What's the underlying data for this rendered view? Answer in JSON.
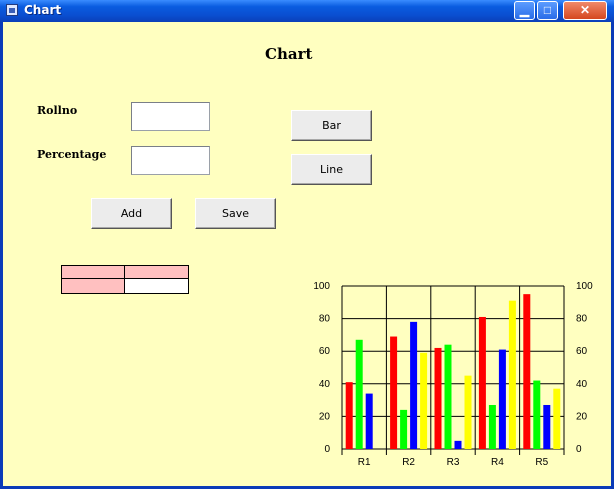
{
  "window": {
    "title": "Chart",
    "controls": {
      "minimize": "▁",
      "maximize": "□",
      "close": "✕"
    }
  },
  "form": {
    "heading": "Chart",
    "rollno_label": "Rollno",
    "percentage_label": "Percentage",
    "rollno_value": "",
    "percentage_value": "",
    "bar_button": "Bar",
    "line_button": "Line",
    "add_button": "Add",
    "save_button": "Save"
  },
  "grid": {
    "rows": [
      [
        "",
        ""
      ],
      [
        "",
        ""
      ]
    ],
    "fixed_color": "#ffc0c0"
  },
  "chart_data": {
    "type": "bar",
    "categories": [
      "R1",
      "R2",
      "R3",
      "R4",
      "R5"
    ],
    "series": [
      {
        "color": "#ff0000",
        "values": [
          41,
          69,
          62,
          81,
          95
        ]
      },
      {
        "color": "#00ff00",
        "values": [
          67,
          24,
          64,
          27,
          42
        ]
      },
      {
        "color": "#0000ff",
        "values": [
          34,
          78,
          5,
          61,
          27
        ]
      },
      {
        "color": "#ffff00",
        "values": [
          0,
          59,
          45,
          91,
          37
        ]
      }
    ],
    "ylim": [
      0,
      100
    ],
    "yticks": [
      0,
      20,
      40,
      60,
      80,
      100
    ],
    "grid": true,
    "secondary_y_axis": true
  }
}
